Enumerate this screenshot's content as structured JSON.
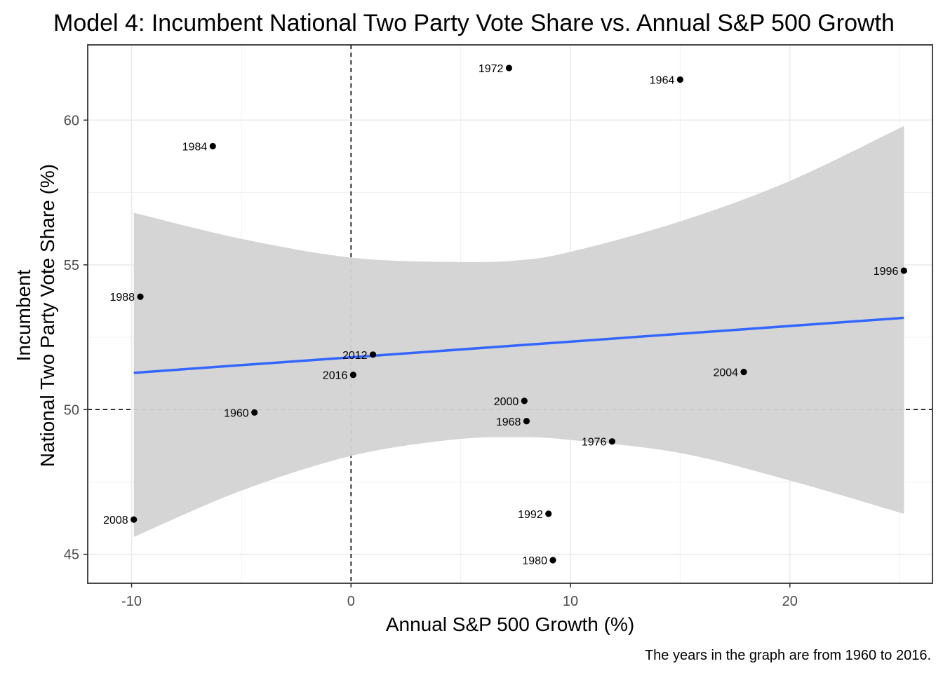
{
  "chart_data": {
    "type": "scatter",
    "title": "Model 4: Incumbent National Two Party Vote Share vs. Annual S&P 500 Growth",
    "xlabel": "Annual S&P 500 Growth (%)",
    "ylabel_lines": [
      "Incumbent",
      "National Two Party Vote Share (%)"
    ],
    "caption": "The years in the graph are from 1960 to 2016.",
    "xlim": [
      -12,
      26.5
    ],
    "ylim": [
      44,
      62.6
    ],
    "x_ticks": [
      -10,
      0,
      10,
      20
    ],
    "y_ticks": [
      45,
      50,
      55,
      60
    ],
    "grid": true,
    "reference_lines": {
      "x": 0,
      "y": 50,
      "style": "dashed"
    },
    "points": [
      {
        "label": "1960",
        "x": -4.4,
        "y": 49.9
      },
      {
        "label": "1964",
        "x": 15.0,
        "y": 61.4
      },
      {
        "label": "1968",
        "x": 8.0,
        "y": 49.6
      },
      {
        "label": "1972",
        "x": 7.2,
        "y": 61.8
      },
      {
        "label": "1976",
        "x": 11.9,
        "y": 48.9
      },
      {
        "label": "1980",
        "x": 9.2,
        "y": 44.8
      },
      {
        "label": "1984",
        "x": -6.3,
        "y": 59.1
      },
      {
        "label": "1988",
        "x": -9.6,
        "y": 53.9
      },
      {
        "label": "1992",
        "x": 9.0,
        "y": 46.4
      },
      {
        "label": "1996",
        "x": 25.2,
        "y": 54.8
      },
      {
        "label": "2000",
        "x": 7.9,
        "y": 50.3
      },
      {
        "label": "2004",
        "x": 17.9,
        "y": 51.3
      },
      {
        "label": "2008",
        "x": -9.9,
        "y": 46.2
      },
      {
        "label": "2012",
        "x": 1.0,
        "y": 51.9
      },
      {
        "label": "2016",
        "x": 0.1,
        "y": 51.2
      }
    ],
    "fit_line": {
      "x": [
        -9.9,
        25.2
      ],
      "y": [
        51.27,
        53.17
      ],
      "color": "#3366FF"
    },
    "confidence_band": {
      "color": "#D3D3D3",
      "x": [
        -9.9,
        -5,
        0,
        4.5,
        7.5,
        10,
        15,
        20,
        25.2
      ],
      "upper": [
        56.8,
        55.9,
        55.25,
        55.1,
        55.15,
        55.45,
        56.5,
        57.9,
        59.8
      ],
      "lower": [
        45.6,
        47.2,
        48.4,
        48.95,
        49.05,
        48.95,
        48.5,
        47.55,
        46.4
      ]
    },
    "point_color": "#000000"
  }
}
